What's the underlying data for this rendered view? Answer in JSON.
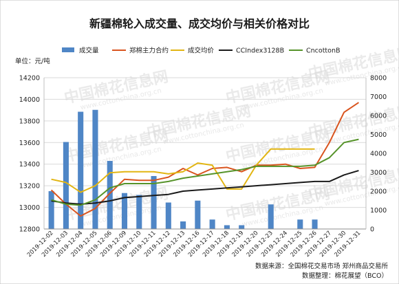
{
  "chart_data": {
    "type": "bar+line",
    "title": "新疆棉轮入成交量、成交均价与相关价格对比",
    "ylabel_left": "单位：元/吨",
    "categories": [
      "2019-12-02",
      "2019-12-03",
      "2019-12-04",
      "2019-12-05",
      "2019-12-06",
      "2019-12-09",
      "2019-12-10",
      "2019-12-11",
      "2019-12-12",
      "2019-12-13",
      "2019-12-16",
      "2019-12-17",
      "2019-12-18",
      "2019-12-19",
      "2019-12-20",
      "2019-12-23",
      "2019-12-24",
      "2019-12-25",
      "2019-12-26",
      "2019-12-27",
      "2019-12-30",
      "2019-12-31"
    ],
    "y_left": {
      "min": 12800,
      "max": 14200,
      "ticks": [
        12800,
        13000,
        13200,
        13400,
        13600,
        13800,
        14000,
        14200
      ]
    },
    "y_right": {
      "min": 0,
      "max": 8000,
      "ticks": [
        0,
        1000,
        2000,
        3000,
        4000,
        5000,
        6000,
        7000,
        8000
      ]
    },
    "bar_series": {
      "name": "成交量",
      "axis": "right",
      "color": "#4f86c6",
      "values": [
        2000,
        4600,
        6200,
        6300,
        3600,
        1900,
        1800,
        2800,
        1400,
        400,
        1500,
        500,
        200,
        200,
        0,
        1300,
        0,
        500,
        500,
        0,
        0,
        0
      ]
    },
    "line_series": [
      {
        "name": "郑棉主力合约",
        "axis": "left",
        "color": "#d9541e",
        "values": [
          13160,
          13030,
          12920,
          12990,
          13130,
          13260,
          13250,
          13250,
          13280,
          13360,
          13300,
          13360,
          13370,
          13330,
          13390,
          13390,
          13400,
          13360,
          13370,
          13600,
          13880,
          13970
        ]
      },
      {
        "name": "成交均价",
        "axis": "left",
        "color": "#e2b512",
        "values": [
          13260,
          13230,
          13140,
          13200,
          13320,
          13330,
          13330,
          13330,
          13310,
          13330,
          13410,
          13390,
          13170,
          13170,
          13390,
          13540,
          13540,
          13540,
          13540,
          null,
          null,
          null
        ]
      },
      {
        "name": "CCIndex3128B",
        "axis": "left",
        "color": "#1a1a1a",
        "values": [
          13060,
          13040,
          13030,
          13040,
          13060,
          13090,
          13100,
          13110,
          13120,
          13150,
          13160,
          13170,
          13180,
          13190,
          13200,
          13210,
          13220,
          13230,
          13240,
          13240,
          13300,
          13340
        ]
      },
      {
        "name": "CncottonB",
        "axis": "left",
        "color": "#56932a",
        "values": [
          13070,
          13030,
          13020,
          13070,
          13180,
          13220,
          13220,
          13220,
          13240,
          13270,
          13290,
          13310,
          13330,
          13350,
          13380,
          13380,
          13380,
          13380,
          13390,
          13460,
          13600,
          13630
        ]
      }
    ],
    "legend_placement": "top",
    "grid": true,
    "source": "数据来源：全国棉花交易市场 郑州商品交易所",
    "compiler": "数据整理：棉花展望（BCO）"
  },
  "watermark": {
    "text": "中国棉花信息网",
    "url": "www.cottonchina.org.cn"
  }
}
